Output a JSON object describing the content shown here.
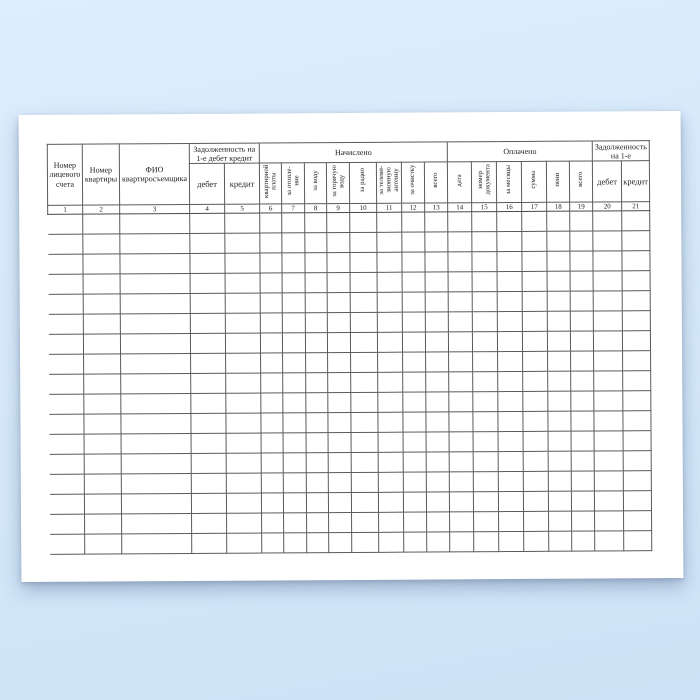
{
  "page": {
    "background_color": "#d6e9fa",
    "paper_color": "#ffffff",
    "line_color": "#5b5b5b"
  },
  "table": {
    "headers": {
      "account": "Номер\nлицевого\nсчета",
      "apartment": "Номер\nквартиры",
      "tenant": "ФИО\nквартиросъемщика"
    },
    "groups": {
      "debt_start": "Задолженность на\n1-е дебет кредит",
      "accrued": "Начислено",
      "paid": "Оплачено",
      "debt_end": "Задолженность\nна 1-е"
    },
    "debt_start_cols": [
      "дебет",
      "кредит"
    ],
    "accrued_cols": [
      "квартирной\nплаты",
      "за отопле-\nние",
      "за воду",
      "за горячую\nводу",
      "за радио",
      "за телеви-\nзионную\nантенну",
      "за очистку",
      "всего"
    ],
    "paid_cols": [
      "дата",
      "номер\nдокумента",
      "за месяцы",
      "сумма",
      "пени",
      "всего"
    ],
    "debt_end_cols": [
      "дебет",
      "кредит"
    ],
    "column_numbers": [
      "1",
      "2",
      "3",
      "4",
      "5",
      "6",
      "7",
      "8",
      "9",
      "10",
      "11",
      "12",
      "13",
      "14",
      "15",
      "16",
      "17",
      "18",
      "19",
      "20",
      "21"
    ],
    "data_rows": 17
  }
}
